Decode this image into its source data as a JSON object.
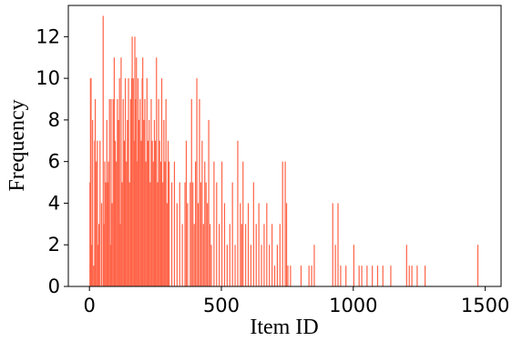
{
  "chart_data": {
    "type": "bar",
    "title": "",
    "xlabel": "Item ID",
    "ylabel": "Frequency",
    "xlim": [
      -80,
      1560
    ],
    "ylim": [
      0,
      13.5
    ],
    "xticks": [
      0,
      500,
      1000,
      1500
    ],
    "yticks": [
      0,
      2,
      4,
      6,
      8,
      10,
      12
    ],
    "bar_color": "#ff6347",
    "grid": false,
    "legend": "none",
    "series": [
      {
        "x": [
          0,
          2,
          4,
          6,
          10,
          14,
          18,
          20,
          24,
          28,
          30,
          34,
          38,
          44,
          50,
          52,
          56,
          60,
          64,
          66,
          70,
          74,
          78,
          80,
          84,
          88,
          92,
          96,
          100,
          104,
          108,
          112,
          114,
          118,
          122,
          126,
          130,
          134,
          138,
          142,
          146,
          150,
          154,
          158,
          160,
          164,
          168,
          170,
          174,
          176,
          180,
          182,
          186,
          190,
          194,
          198,
          200,
          204,
          208,
          212,
          216,
          220,
          224,
          228,
          232,
          236,
          240,
          244,
          248,
          252,
          256,
          260,
          264,
          268,
          272,
          276,
          280,
          284,
          288,
          292,
          296,
          300,
          310,
          320,
          330,
          340,
          350,
          360,
          365,
          370,
          380,
          385,
          390,
          395,
          400,
          405,
          410,
          415,
          420,
          425,
          430,
          435,
          440,
          445,
          450,
          455,
          460,
          470,
          480,
          490,
          500,
          510,
          520,
          530,
          540,
          550,
          560,
          570,
          575,
          580,
          590,
          600,
          610,
          620,
          630,
          640,
          650,
          660,
          670,
          680,
          690,
          700,
          710,
          720,
          730,
          740,
          745,
          750,
          760,
          800,
          830,
          840,
          850,
          920,
          930,
          940,
          950,
          970,
          1000,
          1020,
          1030,
          1050,
          1070,
          1090,
          1110,
          1140,
          1200,
          1210,
          1220,
          1240,
          1270,
          1470
        ],
        "values": [
          5,
          10,
          10,
          2,
          8,
          1,
          7,
          9,
          6,
          7,
          2,
          3,
          7,
          4,
          13,
          3,
          6,
          5,
          8,
          5,
          6,
          9,
          2,
          9,
          4,
          9,
          11,
          7,
          6,
          9,
          8,
          10,
          3,
          11,
          5,
          9,
          7,
          10,
          6,
          8,
          10,
          5,
          9,
          10,
          12,
          10,
          7,
          12,
          9,
          11,
          6,
          10,
          8,
          9,
          7,
          10,
          11,
          8,
          9,
          6,
          10,
          7,
          8,
          5,
          9,
          7,
          6,
          8,
          7,
          11,
          5,
          9,
          7,
          6,
          10,
          5,
          8,
          6,
          9,
          4,
          7,
          6,
          5,
          6,
          4,
          5,
          3,
          5,
          7,
          4,
          5,
          9,
          5,
          3,
          6,
          10,
          4,
          9,
          5,
          7,
          3,
          6,
          5,
          4,
          8,
          3,
          2,
          6,
          5,
          3,
          6,
          4,
          2,
          3,
          5,
          2,
          7,
          4,
          3,
          6,
          3,
          4,
          2,
          5,
          3,
          4,
          2,
          3,
          4,
          2,
          3,
          1,
          2,
          3,
          6,
          6,
          4,
          1,
          1,
          1,
          1,
          1,
          2,
          4,
          2,
          4,
          1,
          1,
          2,
          1,
          1,
          1,
          1,
          1,
          1,
          1,
          2,
          1,
          1,
          1,
          1,
          2
        ]
      }
    ]
  }
}
